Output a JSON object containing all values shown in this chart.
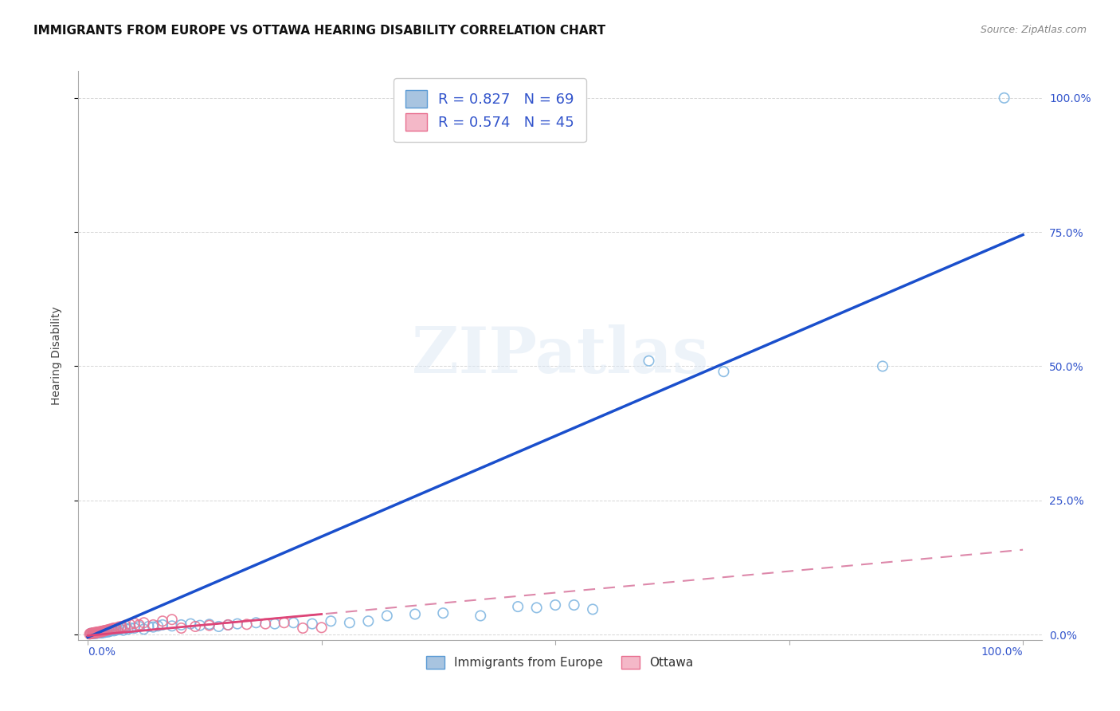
{
  "title": "IMMIGRANTS FROM EUROPE VS OTTAWA HEARING DISABILITY CORRELATION CHART",
  "source": "Source: ZipAtlas.com",
  "ylabel": "Hearing Disability",
  "ytick_labels": [
    "0.0%",
    "25.0%",
    "50.0%",
    "75.0%",
    "100.0%"
  ],
  "ytick_values": [
    0.0,
    0.25,
    0.5,
    0.75,
    1.0
  ],
  "legend_entries": [
    {
      "color": "#a8c4e0",
      "border_color": "#5b9bd5",
      "R": "0.827",
      "N": "69"
    },
    {
      "color": "#f4b8c8",
      "border_color": "#e87090",
      "R": "0.574",
      "N": "45"
    }
  ],
  "blue_scatter_x": [
    0.003,
    0.005,
    0.006,
    0.007,
    0.008,
    0.008,
    0.009,
    0.01,
    0.01,
    0.011,
    0.012,
    0.012,
    0.013,
    0.014,
    0.015,
    0.015,
    0.016,
    0.017,
    0.018,
    0.019,
    0.02,
    0.021,
    0.022,
    0.023,
    0.025,
    0.026,
    0.028,
    0.03,
    0.032,
    0.035,
    0.038,
    0.04,
    0.043,
    0.046,
    0.05,
    0.055,
    0.06,
    0.065,
    0.07,
    0.075,
    0.08,
    0.09,
    0.1,
    0.11,
    0.12,
    0.13,
    0.14,
    0.15,
    0.16,
    0.18,
    0.2,
    0.22,
    0.24,
    0.26,
    0.28,
    0.3,
    0.32,
    0.35,
    0.38,
    0.42,
    0.46,
    0.48,
    0.5,
    0.52,
    0.54,
    0.6,
    0.68,
    0.85,
    0.98
  ],
  "blue_scatter_y": [
    0.002,
    0.002,
    0.002,
    0.002,
    0.003,
    0.003,
    0.002,
    0.003,
    0.004,
    0.003,
    0.003,
    0.004,
    0.003,
    0.004,
    0.003,
    0.005,
    0.004,
    0.005,
    0.004,
    0.006,
    0.005,
    0.006,
    0.005,
    0.006,
    0.007,
    0.008,
    0.007,
    0.008,
    0.009,
    0.01,
    0.008,
    0.012,
    0.01,
    0.012,
    0.012,
    0.015,
    0.01,
    0.015,
    0.014,
    0.016,
    0.018,
    0.016,
    0.018,
    0.02,
    0.017,
    0.019,
    0.015,
    0.018,
    0.02,
    0.022,
    0.02,
    0.022,
    0.02,
    0.025,
    0.022,
    0.025,
    0.035,
    0.038,
    0.04,
    0.035,
    0.052,
    0.05,
    0.055,
    0.055,
    0.047,
    0.51,
    0.49,
    0.5,
    1.0
  ],
  "pink_scatter_x": [
    0.002,
    0.003,
    0.004,
    0.005,
    0.006,
    0.006,
    0.007,
    0.008,
    0.008,
    0.009,
    0.01,
    0.01,
    0.011,
    0.012,
    0.013,
    0.014,
    0.015,
    0.016,
    0.017,
    0.018,
    0.02,
    0.022,
    0.024,
    0.026,
    0.028,
    0.03,
    0.033,
    0.036,
    0.04,
    0.045,
    0.05,
    0.055,
    0.06,
    0.07,
    0.08,
    0.09,
    0.1,
    0.115,
    0.13,
    0.15,
    0.17,
    0.19,
    0.21,
    0.23,
    0.25
  ],
  "pink_scatter_y": [
    0.001,
    0.002,
    0.002,
    0.002,
    0.003,
    0.003,
    0.003,
    0.003,
    0.004,
    0.003,
    0.004,
    0.004,
    0.004,
    0.005,
    0.005,
    0.005,
    0.006,
    0.006,
    0.007,
    0.007,
    0.008,
    0.009,
    0.01,
    0.011,
    0.012,
    0.012,
    0.014,
    0.015,
    0.017,
    0.019,
    0.021,
    0.018,
    0.022,
    0.018,
    0.025,
    0.028,
    0.012,
    0.015,
    0.017,
    0.018,
    0.019,
    0.02,
    0.022,
    0.012,
    0.013
  ],
  "blue_line_slope": 0.75,
  "blue_line_intercept": -0.005,
  "pink_line_slope": 0.16,
  "pink_line_intercept": -0.002,
  "scatter_blue_facecolor": "none",
  "scatter_blue_edgecolor": "#7ab3e0",
  "scatter_pink_facecolor": "none",
  "scatter_pink_edgecolor": "#e87090",
  "line_blue_color": "#1a4fcc",
  "line_pink_color": "#dd4477",
  "line_pink_dash_color": "#dd88aa",
  "background_color": "#ffffff",
  "grid_color": "#cccccc",
  "legend_text_color": "#3355cc",
  "title_fontsize": 11,
  "axis_label_fontsize": 10,
  "tick_fontsize": 10,
  "legend_fontsize": 13
}
